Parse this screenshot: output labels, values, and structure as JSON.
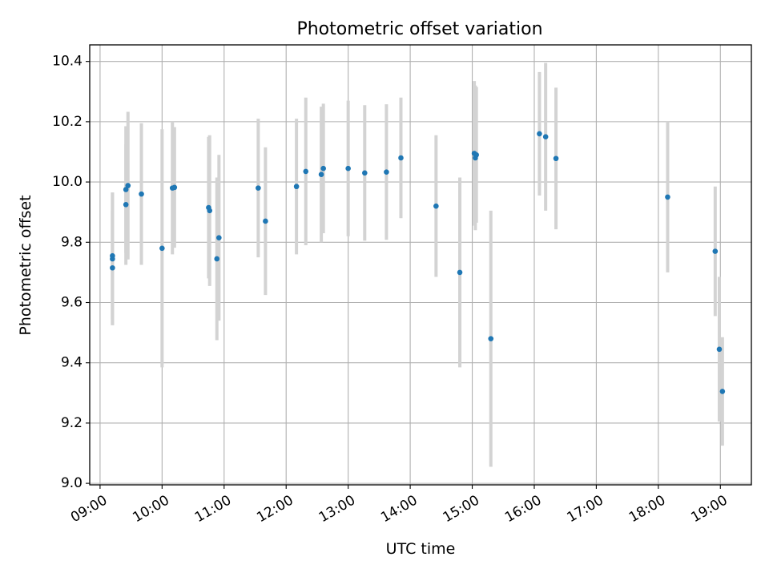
{
  "chart_data": {
    "type": "scatter",
    "title": "Photometric offset variation",
    "xlabel": "UTC time",
    "ylabel": "Photometric offset",
    "xlim": [
      "08:50",
      "19:30"
    ],
    "ylim": [
      8.995,
      10.455
    ],
    "x_ticks": [
      "09:00",
      "10:00",
      "11:00",
      "12:00",
      "13:00",
      "14:00",
      "15:00",
      "16:00",
      "17:00",
      "18:00",
      "19:00"
    ],
    "y_ticks": [
      "9.0",
      "9.2",
      "9.4",
      "9.6",
      "9.8",
      "10.0",
      "10.2",
      "10.4"
    ],
    "grid": true,
    "marker_color": "#1f77b4",
    "errorbar_color": "#d3d3d3",
    "points": [
      {
        "x": "09:12",
        "y": 9.755,
        "err": 0.21
      },
      {
        "x": "09:12",
        "y": 9.745,
        "err": 0.22
      },
      {
        "x": "09:12",
        "y": 9.715,
        "err": 0.19
      },
      {
        "x": "09:25",
        "y": 9.975,
        "err": 0.21
      },
      {
        "x": "09:25",
        "y": 9.925,
        "err": 0.2
      },
      {
        "x": "09:27",
        "y": 9.988,
        "err": 0.245
      },
      {
        "x": "09:40",
        "y": 9.96,
        "err": 0.235
      },
      {
        "x": "10:00",
        "y": 9.78,
        "err": 0.395
      },
      {
        "x": "10:10",
        "y": 9.98,
        "err": 0.22
      },
      {
        "x": "10:12",
        "y": 9.982,
        "err": 0.2
      },
      {
        "x": "10:45",
        "y": 9.915,
        "err": 0.235
      },
      {
        "x": "10:46",
        "y": 9.905,
        "err": 0.25
      },
      {
        "x": "10:53",
        "y": 9.745,
        "err": 0.27
      },
      {
        "x": "10:55",
        "y": 9.815,
        "err": 0.275
      },
      {
        "x": "11:33",
        "y": 9.98,
        "err": 0.23
      },
      {
        "x": "11:40",
        "y": 9.87,
        "err": 0.245
      },
      {
        "x": "12:10",
        "y": 9.985,
        "err": 0.225
      },
      {
        "x": "12:19",
        "y": 10.035,
        "err": 0.245
      },
      {
        "x": "12:34",
        "y": 10.025,
        "err": 0.225
      },
      {
        "x": "12:36",
        "y": 10.045,
        "err": 0.215
      },
      {
        "x": "13:00",
        "y": 10.045,
        "err": 0.225
      },
      {
        "x": "13:16",
        "y": 10.03,
        "err": 0.225
      },
      {
        "x": "13:37",
        "y": 10.033,
        "err": 0.225
      },
      {
        "x": "13:51",
        "y": 10.08,
        "err": 0.2
      },
      {
        "x": "14:25",
        "y": 9.92,
        "err": 0.235
      },
      {
        "x": "14:48",
        "y": 9.7,
        "err": 0.315
      },
      {
        "x": "15:02",
        "y": 10.095,
        "err": 0.24
      },
      {
        "x": "15:03",
        "y": 10.08,
        "err": 0.24
      },
      {
        "x": "15:04",
        "y": 10.09,
        "err": 0.225
      },
      {
        "x": "15:18",
        "y": 9.48,
        "err": 0.425
      },
      {
        "x": "16:05",
        "y": 10.16,
        "err": 0.205
      },
      {
        "x": "16:11",
        "y": 10.15,
        "err": 0.245
      },
      {
        "x": "16:21",
        "y": 10.078,
        "err": 0.235
      },
      {
        "x": "18:09",
        "y": 9.95,
        "err": 0.25
      },
      {
        "x": "18:55",
        "y": 9.77,
        "err": 0.215
      },
      {
        "x": "18:59",
        "y": 9.445,
        "err": 0.24
      },
      {
        "x": "19:02",
        "y": 9.305,
        "err": 0.18
      }
    ]
  }
}
